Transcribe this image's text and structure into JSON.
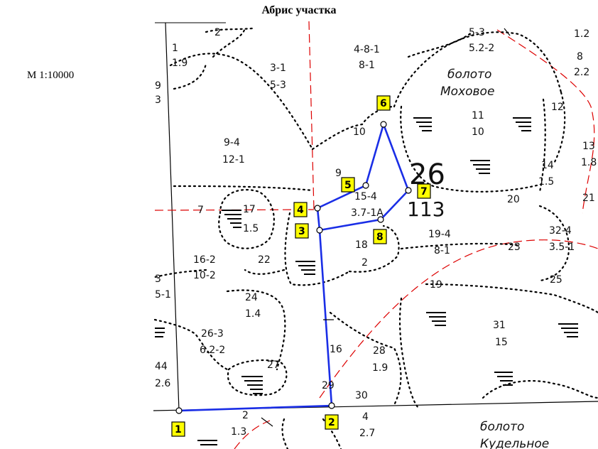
{
  "title": "Абрис участка",
  "scale": "М 1:10000",
  "compartment": {
    "number": "26",
    "area": "113"
  },
  "swamps": [
    {
      "name_line1": "болото",
      "name_line2": "Моховое"
    },
    {
      "name_line1": "болото",
      "name_line2": "Кудельное"
    }
  ],
  "plot_points": [
    "1",
    "2",
    "3",
    "4",
    "5",
    "6",
    "7",
    "8"
  ],
  "sub_labels": [
    "2",
    "1",
    "1.9",
    "3-1",
    "5-3",
    "4-8-1",
    "8-1",
    "5-3",
    "5.2-2",
    "1.2",
    "8",
    "2.2",
    "11",
    "10",
    "12",
    "10",
    "9-4",
    "12-1",
    "9",
    "13",
    "1.8",
    "14",
    "1.5",
    "15-4",
    "3.7-1А",
    "20",
    "21",
    "17",
    "1.5",
    "7",
    "19-4",
    "8-1",
    "18",
    "32-4",
    "3.5-1",
    "23",
    "16-2",
    "10-2",
    "22",
    "2",
    "25",
    "19",
    "3",
    "5-1",
    "24",
    "1.4",
    "31",
    "15",
    "26-3",
    "6.2-2",
    "16",
    "28",
    "1.9",
    "27",
    "44",
    "2.6",
    "29",
    "30",
    "2",
    "1.3",
    "4",
    "2.7",
    "9",
    "3"
  ]
}
